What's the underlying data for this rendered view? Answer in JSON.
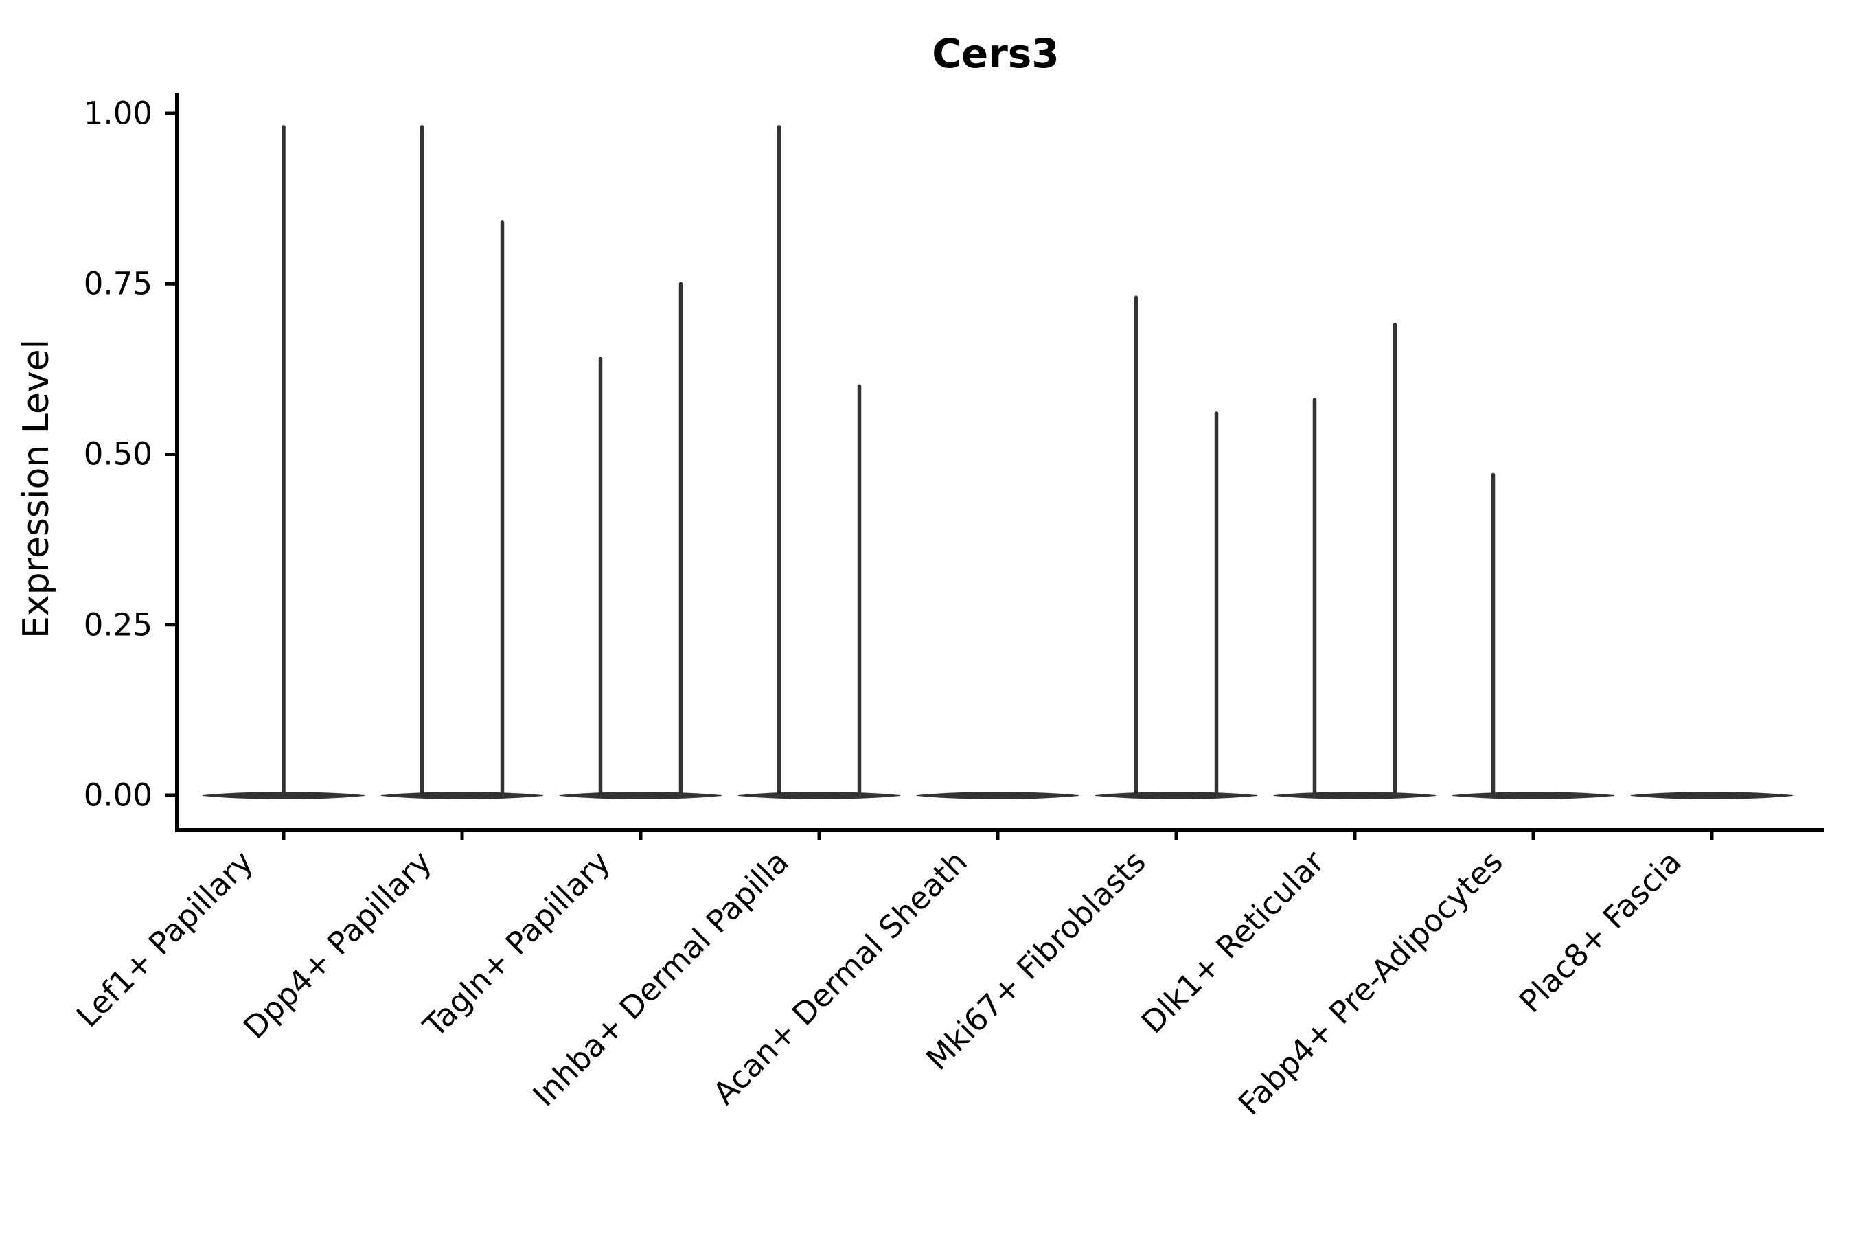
{
  "title": "Cers3",
  "ylabel": "Expression Level",
  "chart_data": {
    "type": "violin",
    "title": "Cers3",
    "xlabel": "",
    "ylabel": "Expression Level",
    "ylim": [
      0,
      1.0
    ],
    "yticks": [
      "1.00",
      "0.75",
      "0.50",
      "0.25",
      "0.00"
    ],
    "ytick_values": [
      1.0,
      0.75,
      0.5,
      0.25,
      0.0
    ],
    "grid": false,
    "legend": "none",
    "categories": [
      "Lef1+ Papillary",
      "Dpp4+ Papillary",
      "Tagln+ Papillary",
      "Inhba+ Dermal Papilla",
      "Acan+ Dermal Sheath",
      "Mki67+ Fibroblasts",
      "Dlk1+ Reticular",
      "Fabp4+ Pre-Adipocytes",
      "Plac8+ Fascia"
    ],
    "violins": [
      {
        "category": "Lef1+ Papillary",
        "base_at": 0,
        "spikes": [
          {
            "pos": 0,
            "max": 0.98
          }
        ]
      },
      {
        "category": "Dpp4+ Papillary",
        "base_at": 0,
        "spikes": [
          {
            "pos": -1,
            "max": 0.98
          },
          {
            "pos": 1,
            "max": 0.84
          }
        ]
      },
      {
        "category": "Tagln+ Papillary",
        "base_at": 0,
        "spikes": [
          {
            "pos": -1,
            "max": 0.64
          },
          {
            "pos": 1,
            "max": 0.75
          }
        ]
      },
      {
        "category": "Inhba+ Dermal Papilla",
        "base_at": 0,
        "spikes": [
          {
            "pos": -1,
            "max": 0.98
          },
          {
            "pos": 1,
            "max": 0.6
          }
        ]
      },
      {
        "category": "Acan+ Dermal Sheath",
        "base_at": 0,
        "spikes": []
      },
      {
        "category": "Mki67+ Fibroblasts",
        "base_at": 0,
        "spikes": [
          {
            "pos": -1,
            "max": 0.73
          },
          {
            "pos": 1,
            "max": 0.56
          }
        ]
      },
      {
        "category": "Dlk1+ Reticular",
        "base_at": 0,
        "spikes": [
          {
            "pos": -1,
            "max": 0.58
          },
          {
            "pos": 1,
            "max": 0.69
          }
        ]
      },
      {
        "category": "Fabp4+ Pre-Adipocytes",
        "base_at": 0,
        "spikes": [
          {
            "pos": -1,
            "max": 0.47
          }
        ]
      },
      {
        "category": "Plac8+ Fascia",
        "base_at": 0,
        "spikes": []
      }
    ],
    "colors": {
      "violin": "#333333",
      "axis": "#000000",
      "text": "#000000",
      "background": "#ffffff"
    }
  }
}
